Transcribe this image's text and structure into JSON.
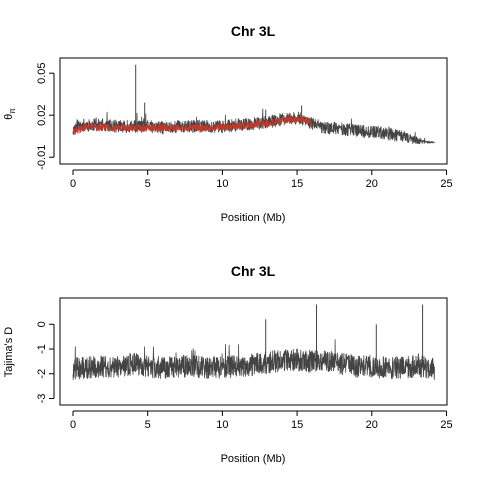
{
  "chart_data": [
    {
      "type": "line",
      "title": "Chr 3L",
      "xlabel": "Position (Mb)",
      "ylabel": "θπ",
      "ylabel_main": "θ",
      "ylabel_sub": "π",
      "xlim": [
        0,
        24.5
      ],
      "ylim": [
        -0.012,
        0.058
      ],
      "x_ticks": [
        0,
        5,
        10,
        15,
        20,
        25
      ],
      "x_tick_labels": [
        "0",
        "5",
        "10",
        "15",
        "20",
        "25"
      ],
      "y_ticks": [
        -0.01,
        0.02,
        0.05
      ],
      "y_tick_labels": [
        "-0.01",
        "0.02",
        "0.05"
      ],
      "series": [
        {
          "color": "#444444",
          "profile": {
            "x": [
              0,
              0.3,
              1,
              2,
              3,
              4,
              5,
              6,
              7,
              8,
              9,
              10,
              11,
              12,
              13,
              14,
              15,
              15.5,
              16,
              16.5,
              17,
              18,
              19,
              20,
              21,
              22,
              23,
              23.5,
              24.2
            ],
            "y": [
              0.009,
              0.013,
              0.013,
              0.013,
              0.012,
              0.012,
              0.012,
              0.011,
              0.012,
              0.012,
              0.012,
              0.012,
              0.013,
              0.014,
              0.015,
              0.017,
              0.018,
              0.017,
              0.014,
              0.012,
              0.011,
              0.01,
              0.009,
              0.008,
              0.007,
              0.005,
              0.002,
              0.001,
              0.0005
            ]
          },
          "peaks": [
            {
              "x": 4.2,
              "y": 0.056
            },
            {
              "x": 4.8,
              "y": 0.029
            },
            {
              "x": 12.9,
              "y": 0.024
            },
            {
              "x": 15.3,
              "y": 0.027
            }
          ]
        },
        {
          "color": "#c0392b",
          "profile": {
            "x": [
              0,
              1,
              3,
              5,
              7,
              9,
              11,
              12,
              13,
              14,
              15,
              15.8,
              16
            ],
            "y": [
              0.008,
              0.012,
              0.011,
              0.011,
              0.011,
              0.011,
              0.012,
              0.013,
              0.014,
              0.016,
              0.017,
              0.016,
              0.012
            ]
          }
        }
      ]
    },
    {
      "type": "line",
      "title": "Chr 3L",
      "xlabel": "Position (Mb)",
      "ylabel": "Tajima's D",
      "xlim": [
        0,
        24.5
      ],
      "ylim": [
        -3.1,
        0.9
      ],
      "x_ticks": [
        0,
        5,
        10,
        15,
        20,
        25
      ],
      "x_tick_labels": [
        "0",
        "5",
        "10",
        "15",
        "20",
        "25"
      ],
      "y_ticks": [
        -3,
        -2,
        -1,
        0
      ],
      "y_tick_labels": [
        "-3",
        "-2",
        "-1",
        "0"
      ],
      "series": [
        {
          "color": "#444444",
          "profile": {
            "x": [
              0,
              1,
              2,
              3,
              4,
              5,
              6,
              7,
              8,
              9,
              10,
              11,
              12,
              13,
              14,
              15,
              16,
              17,
              18,
              19,
              20,
              21,
              22,
              23,
              24.2
            ],
            "y": [
              -1.8,
              -1.75,
              -1.7,
              -1.7,
              -1.6,
              -1.7,
              -1.75,
              -1.7,
              -1.7,
              -1.75,
              -1.75,
              -1.7,
              -1.65,
              -1.55,
              -1.45,
              -1.45,
              -1.5,
              -1.5,
              -1.6,
              -1.7,
              -1.7,
              -1.75,
              -1.75,
              -1.7,
              -1.8
            ]
          },
          "peaks": [
            {
              "x": 12.9,
              "y": 0.2
            },
            {
              "x": 16.3,
              "y": 0.8
            },
            {
              "x": 20.3,
              "y": 0.0
            },
            {
              "x": 23.4,
              "y": 0.8
            }
          ]
        }
      ]
    }
  ]
}
